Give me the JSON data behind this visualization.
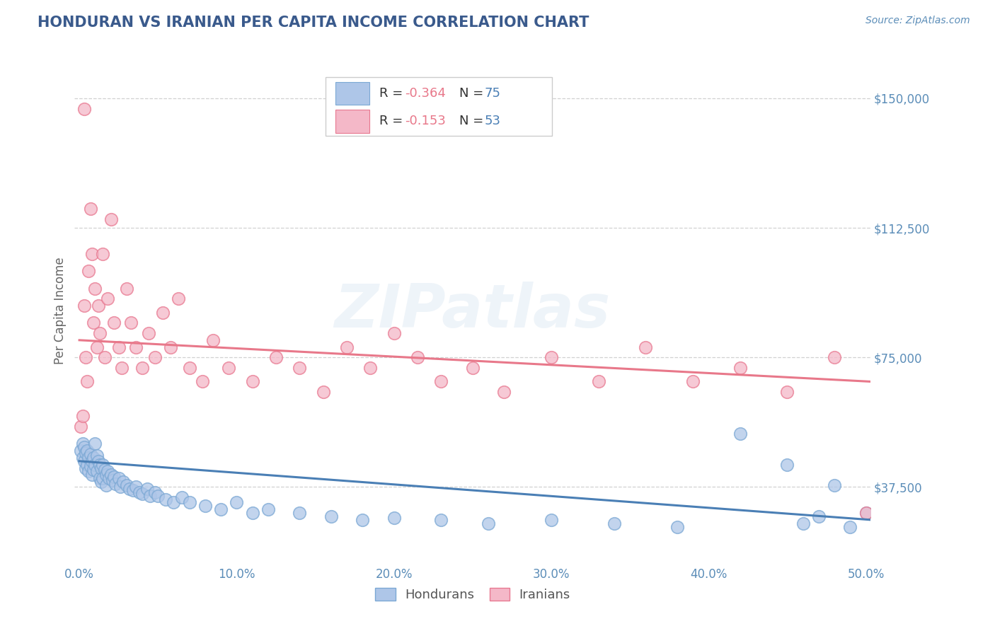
{
  "title": "HONDURAN VS IRANIAN PER CAPITA INCOME CORRELATION CHART",
  "source": "Source: ZipAtlas.com",
  "ylabel": "Per Capita Income",
  "xlim": [
    -0.003,
    0.503
  ],
  "ylim": [
    15000,
    162000
  ],
  "yticks": [
    37500,
    75000,
    112500,
    150000
  ],
  "ytick_labels": [
    "$37,500",
    "$75,000",
    "$112,500",
    "$150,000"
  ],
  "xticks": [
    0.0,
    0.1,
    0.2,
    0.3,
    0.4,
    0.5
  ],
  "xtick_labels": [
    "0.0%",
    "10.0%",
    "20.0%",
    "30.0%",
    "40.0%",
    "50.0%"
  ],
  "title_color": "#3A5A8C",
  "axis_label_color": "#5B8DB8",
  "grid_color": "#CCCCCC",
  "watermark": "ZIPatlas",
  "legend_r1": "-0.364",
  "legend_n1": "75",
  "legend_r2": "-0.153",
  "legend_n2": "53",
  "honduran_face": "#AEC6E8",
  "honduran_edge": "#7BA8D4",
  "iranian_face": "#F4B8C8",
  "iranian_edge": "#E87890",
  "honduran_line": "#4A7FB5",
  "iranian_line": "#E8788A",
  "legend_text_color": "#333333",
  "legend_r_color": "#E8788A",
  "legend_n_color": "#4A7FB5",
  "honduran_scatter_x": [
    0.001,
    0.002,
    0.002,
    0.003,
    0.003,
    0.004,
    0.004,
    0.005,
    0.005,
    0.006,
    0.006,
    0.007,
    0.007,
    0.008,
    0.008,
    0.009,
    0.009,
    0.01,
    0.01,
    0.011,
    0.011,
    0.012,
    0.013,
    0.013,
    0.014,
    0.014,
    0.015,
    0.015,
    0.016,
    0.017,
    0.017,
    0.018,
    0.019,
    0.02,
    0.021,
    0.022,
    0.023,
    0.025,
    0.026,
    0.028,
    0.03,
    0.032,
    0.034,
    0.036,
    0.038,
    0.04,
    0.043,
    0.045,
    0.048,
    0.05,
    0.055,
    0.06,
    0.065,
    0.07,
    0.08,
    0.09,
    0.1,
    0.11,
    0.12,
    0.14,
    0.16,
    0.18,
    0.2,
    0.23,
    0.26,
    0.3,
    0.34,
    0.38,
    0.42,
    0.45,
    0.46,
    0.47,
    0.48,
    0.49,
    0.5
  ],
  "honduran_scatter_y": [
    48000,
    50000,
    46000,
    49000,
    45000,
    47500,
    43000,
    48000,
    44000,
    46000,
    42000,
    47000,
    43500,
    45000,
    41000,
    46000,
    42500,
    50000,
    44000,
    46500,
    42000,
    45000,
    44000,
    40000,
    43000,
    39000,
    44000,
    40000,
    42500,
    41000,
    38000,
    42000,
    40000,
    41000,
    39500,
    40500,
    38500,
    40000,
    37500,
    39000,
    38000,
    37000,
    36500,
    37500,
    36000,
    35500,
    37000,
    35000,
    36000,
    35000,
    34000,
    33000,
    34500,
    33000,
    32000,
    31000,
    33000,
    30000,
    31000,
    30000,
    29000,
    28000,
    28500,
    28000,
    27000,
    28000,
    27000,
    26000,
    53000,
    44000,
    27000,
    29000,
    38000,
    26000,
    30000
  ],
  "iranian_scatter_x": [
    0.001,
    0.002,
    0.003,
    0.003,
    0.004,
    0.005,
    0.006,
    0.007,
    0.008,
    0.009,
    0.01,
    0.011,
    0.012,
    0.013,
    0.015,
    0.016,
    0.018,
    0.02,
    0.022,
    0.025,
    0.027,
    0.03,
    0.033,
    0.036,
    0.04,
    0.044,
    0.048,
    0.053,
    0.058,
    0.063,
    0.07,
    0.078,
    0.085,
    0.095,
    0.11,
    0.125,
    0.14,
    0.155,
    0.17,
    0.185,
    0.2,
    0.215,
    0.23,
    0.25,
    0.27,
    0.3,
    0.33,
    0.36,
    0.39,
    0.42,
    0.45,
    0.48,
    0.5
  ],
  "iranian_scatter_y": [
    55000,
    58000,
    147000,
    90000,
    75000,
    68000,
    100000,
    118000,
    105000,
    85000,
    95000,
    78000,
    90000,
    82000,
    105000,
    75000,
    92000,
    115000,
    85000,
    78000,
    72000,
    95000,
    85000,
    78000,
    72000,
    82000,
    75000,
    88000,
    78000,
    92000,
    72000,
    68000,
    80000,
    72000,
    68000,
    75000,
    72000,
    65000,
    78000,
    72000,
    82000,
    75000,
    68000,
    72000,
    65000,
    75000,
    68000,
    78000,
    68000,
    72000,
    65000,
    75000,
    30000
  ],
  "honduran_trendline": [
    0.0,
    0.503,
    45000,
    28000
  ],
  "iranian_trendline": [
    0.0,
    0.503,
    80000,
    68000
  ],
  "background_color": "#FFFFFF"
}
